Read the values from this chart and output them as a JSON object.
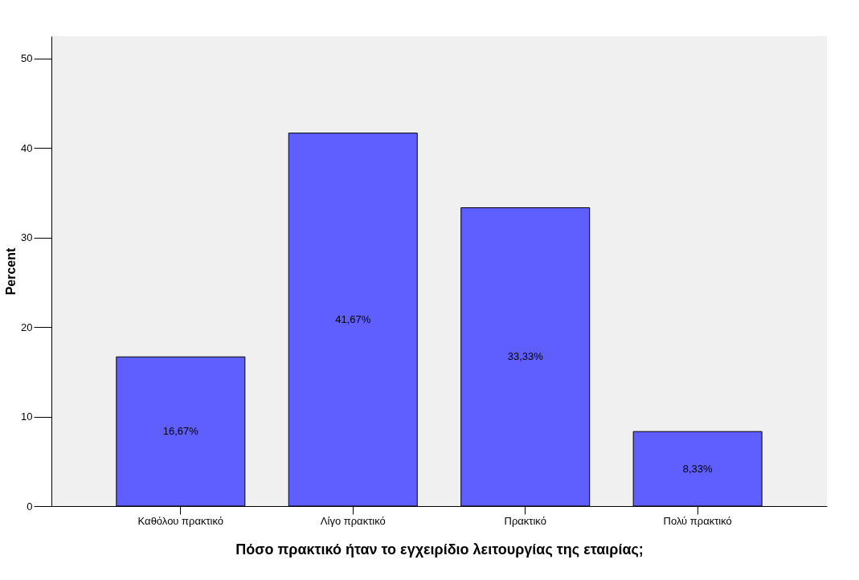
{
  "chart_data": {
    "type": "bar",
    "xlabel": "Πόσο πρακτικό ήταν το εγχειρίδιο λειτουργίας της εταιρίας;",
    "ylabel": "Percent",
    "categories": [
      "Καθόλου πρακτικό",
      "Λίγο πρακτικό",
      "Πρακτικό",
      "Πολύ πρακτικό"
    ],
    "values": [
      16.67,
      41.67,
      33.33,
      8.33
    ],
    "value_labels": [
      "16,67%",
      "41,67%",
      "33,33%",
      "8,33%"
    ],
    "color": "#5f5fff",
    "ylim": [
      0,
      52.5
    ],
    "yticks": [
      0,
      10,
      20,
      30,
      40,
      50
    ],
    "grid": false
  }
}
